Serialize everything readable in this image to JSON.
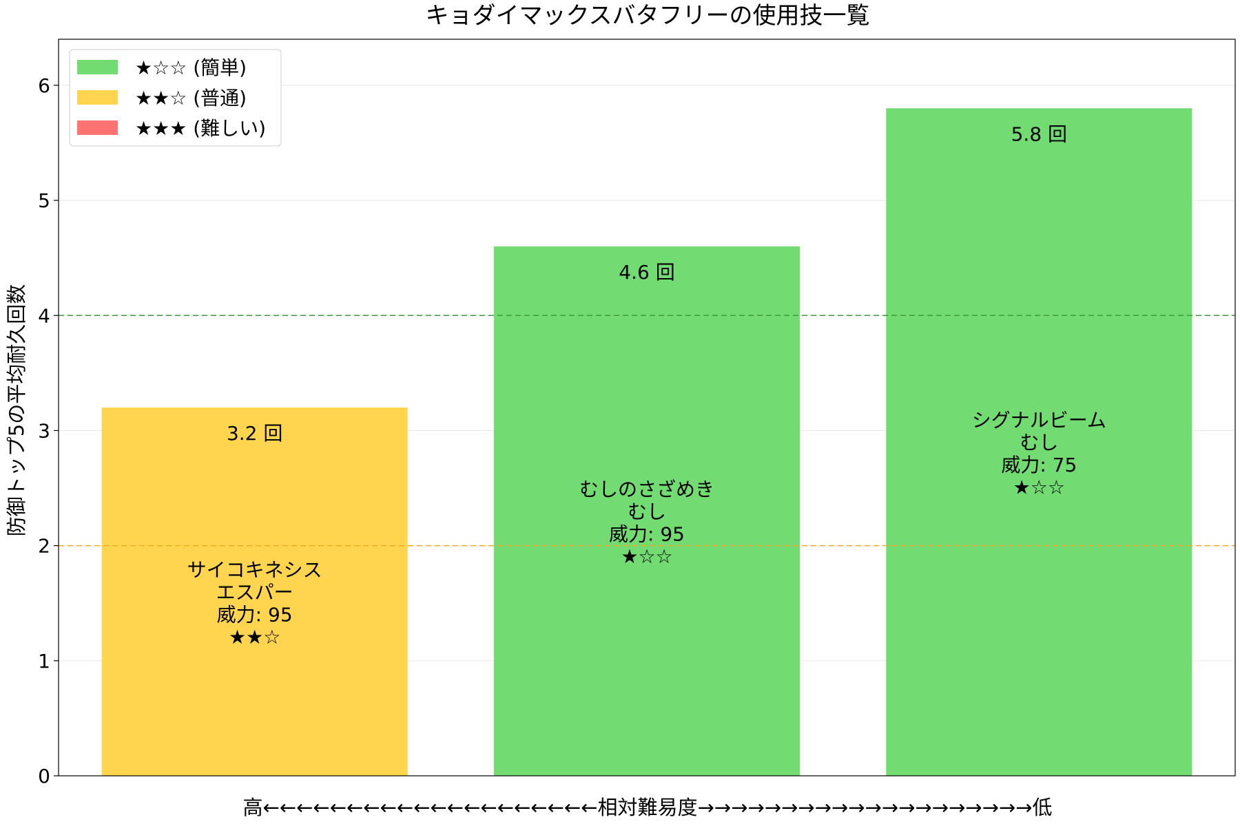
{
  "chart_data": {
    "type": "bar",
    "title": "キョダイマックスバタフリーの使用技一覧",
    "xlabel": "高←←←←←←←←←←←←←←←←←←←←相対難易度→→→→→→→→→→→→→→→→→→→→低",
    "ylabel": "防御トップ5の平均耐久回数",
    "ylim": [
      0,
      6.4
    ],
    "yticks": [
      0,
      1,
      2,
      3,
      4,
      5,
      6
    ],
    "grid": "horizontal",
    "legend_position": "top-left",
    "value_suffix": " 回",
    "power_prefix": "威力: ",
    "categories": [
      "サイコキネシス",
      "むしのさざめき",
      "シグナルビーム"
    ],
    "bars": [
      {
        "move": "サイコキネシス",
        "type": "エスパー",
        "power": 95,
        "stars": "★★☆",
        "difficulty": "普通",
        "value": 3.2,
        "color": "#FFD54F"
      },
      {
        "move": "むしのさざめき",
        "type": "むし",
        "power": 95,
        "stars": "★☆☆",
        "difficulty": "簡単",
        "value": 4.6,
        "color": "#72DB72"
      },
      {
        "move": "シグナルビーム",
        "type": "むし",
        "power": 75,
        "stars": "★☆☆",
        "difficulty": "簡単",
        "value": 5.8,
        "color": "#72DB72"
      }
    ],
    "reference_lines": [
      {
        "value": 4,
        "color": "#3C9A3C",
        "style": "dashed"
      },
      {
        "value": 2,
        "color": "#F5A623",
        "style": "dashed"
      }
    ],
    "legend": [
      {
        "label": "★☆☆ (簡単)",
        "color": "#72DB72"
      },
      {
        "label": "★★☆ (普通)",
        "color": "#FFD54F"
      },
      {
        "label": "★★★ (難しい)",
        "color": "#FF7373"
      }
    ]
  }
}
